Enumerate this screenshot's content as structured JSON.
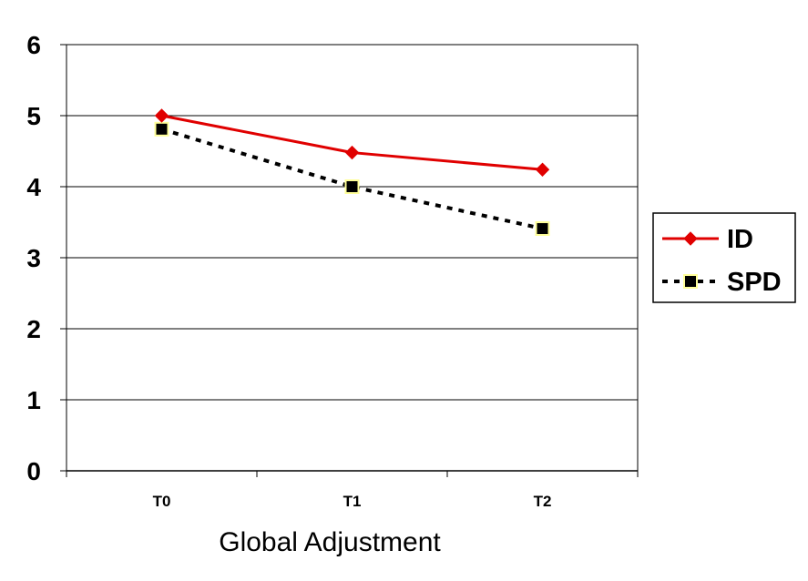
{
  "chart_data": {
    "type": "line",
    "title": "",
    "xlabel": "Global Adjustment",
    "ylabel": "",
    "categories": [
      "T0",
      "T1",
      "T2"
    ],
    "ylim": [
      0,
      6
    ],
    "yticks": [
      "0",
      "1",
      "2",
      "3",
      "4",
      "5",
      "6"
    ],
    "grid": true,
    "legend_position": "right",
    "series": [
      {
        "name": "ID",
        "values": [
          5.0,
          4.48,
          4.24
        ],
        "color": "#e00000",
        "marker": "diamond",
        "line_style": "solid"
      },
      {
        "name": "SPD",
        "values": [
          4.81,
          4.0,
          3.41
        ],
        "color": "#000000",
        "marker_fill": "#000000",
        "marker_edge": "#ffff99",
        "marker": "square",
        "line_style": "dotted"
      }
    ]
  }
}
